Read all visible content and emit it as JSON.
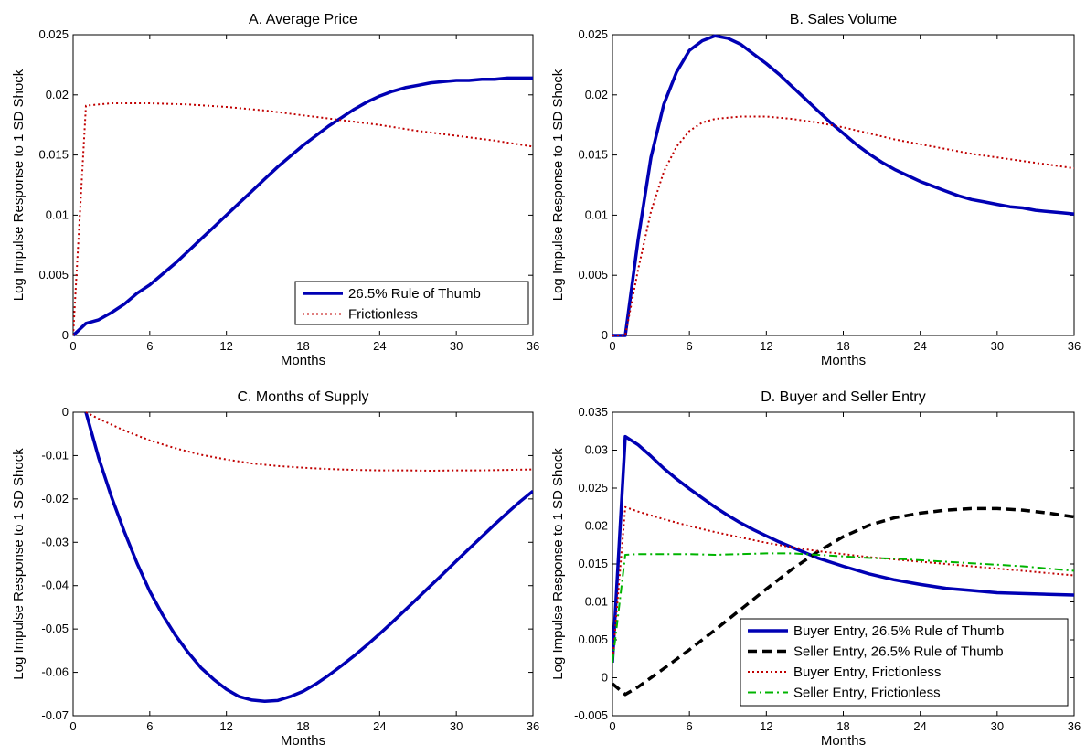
{
  "chart_data": [
    {
      "id": "A",
      "type": "line",
      "title": "A. Average Price",
      "xlabel": "Months",
      "ylabel": "Log Impulse Response to 1 SD Shock",
      "xlim": [
        0,
        36
      ],
      "ylim": [
        0,
        0.025
      ],
      "xticks": [
        0,
        6,
        12,
        18,
        24,
        30,
        36
      ],
      "yticks": [
        0,
        0.005,
        0.01,
        0.015,
        0.02,
        0.025
      ],
      "ytick_labels": [
        "0",
        "0.005",
        "0.01",
        "0.015",
        "0.02",
        "0.025"
      ],
      "legend": "bottom-right",
      "series": [
        {
          "name": "26.5% Rule of Thumb",
          "color": "#0000b4",
          "style": "solid",
          "x": [
            0,
            1,
            2,
            3,
            4,
            5,
            6,
            7,
            8,
            9,
            10,
            11,
            12,
            13,
            14,
            15,
            16,
            17,
            18,
            19,
            20,
            21,
            22,
            23,
            24,
            25,
            26,
            27,
            28,
            29,
            30,
            31,
            32,
            33,
            34,
            35,
            36
          ],
          "y": [
            0,
            0.001,
            0.0013,
            0.0019,
            0.0026,
            0.0035,
            0.0042,
            0.0051,
            0.006,
            0.007,
            0.008,
            0.009,
            0.01,
            0.011,
            0.012,
            0.013,
            0.014,
            0.0149,
            0.0158,
            0.0166,
            0.0174,
            0.0181,
            0.0188,
            0.0194,
            0.0199,
            0.0203,
            0.0206,
            0.0208,
            0.021,
            0.0211,
            0.0212,
            0.0212,
            0.0213,
            0.0213,
            0.0214,
            0.0214,
            0.0214
          ]
        },
        {
          "name": "Frictionless",
          "color": "#c00000",
          "style": "dotted",
          "x": [
            0,
            1,
            3,
            6,
            9,
            12,
            15,
            18,
            21,
            24,
            27,
            30,
            33,
            36
          ],
          "y": [
            0,
            0.0191,
            0.0193,
            0.0193,
            0.0192,
            0.019,
            0.0187,
            0.0183,
            0.0179,
            0.0175,
            0.017,
            0.0166,
            0.0162,
            0.0157
          ]
        }
      ]
    },
    {
      "id": "B",
      "type": "line",
      "title": "B. Sales Volume",
      "xlabel": "Months",
      "ylabel": "Log Impulse Response to 1 SD Shock",
      "xlim": [
        0,
        36
      ],
      "ylim": [
        0,
        0.025
      ],
      "xticks": [
        0,
        6,
        12,
        18,
        24,
        30,
        36
      ],
      "yticks": [
        0,
        0.005,
        0.01,
        0.015,
        0.02,
        0.025
      ],
      "ytick_labels": [
        "0",
        "0.005",
        "0.01",
        "0.015",
        "0.02",
        "0.025"
      ],
      "series": [
        {
          "name": "26.5% Rule of Thumb",
          "color": "#0000b4",
          "style": "solid",
          "x": [
            0,
            1,
            2,
            3,
            4,
            5,
            6,
            7,
            8,
            9,
            10,
            11,
            12,
            13,
            14,
            15,
            16,
            17,
            18,
            19,
            20,
            21,
            22,
            23,
            24,
            25,
            26,
            27,
            28,
            29,
            30,
            31,
            32,
            33,
            34,
            35,
            36
          ],
          "y": [
            0,
            0,
            0.008,
            0.0148,
            0.0192,
            0.0219,
            0.0237,
            0.0245,
            0.0249,
            0.0247,
            0.0242,
            0.0234,
            0.0226,
            0.0217,
            0.0207,
            0.0197,
            0.0187,
            0.0177,
            0.0168,
            0.0159,
            0.0151,
            0.0144,
            0.0138,
            0.0133,
            0.0128,
            0.0124,
            0.012,
            0.0116,
            0.0113,
            0.0111,
            0.0109,
            0.0107,
            0.0106,
            0.0104,
            0.0103,
            0.0102,
            0.0101
          ]
        },
        {
          "name": "Frictionless",
          "color": "#c00000",
          "style": "dotted",
          "x": [
            0,
            1,
            2,
            3,
            4,
            5,
            6,
            7,
            8,
            9,
            10,
            11,
            12,
            14,
            16,
            18,
            20,
            22,
            24,
            26,
            28,
            30,
            32,
            34,
            36
          ],
          "y": [
            0,
            0,
            0.0055,
            0.0103,
            0.0136,
            0.0157,
            0.017,
            0.0177,
            0.018,
            0.0181,
            0.0182,
            0.0182,
            0.0182,
            0.018,
            0.0177,
            0.0173,
            0.0168,
            0.0163,
            0.0159,
            0.0155,
            0.0151,
            0.0148,
            0.0145,
            0.0142,
            0.0139
          ]
        }
      ]
    },
    {
      "id": "C",
      "type": "line",
      "title": "C. Months of Supply",
      "xlabel": "Months",
      "ylabel": "Log Impulse Response to 1 SD Shock",
      "xlim": [
        0,
        36
      ],
      "ylim": [
        -0.07,
        0
      ],
      "xticks": [
        0,
        6,
        12,
        18,
        24,
        30,
        36
      ],
      "yticks": [
        -0.07,
        -0.06,
        -0.05,
        -0.04,
        -0.03,
        -0.02,
        -0.01,
        0
      ],
      "ytick_labels": [
        "-0.07",
        "-0.06",
        "-0.05",
        "-0.04",
        "-0.03",
        "-0.02",
        "-0.01",
        "0"
      ],
      "series": [
        {
          "name": "26.5% Rule of Thumb",
          "color": "#0000b4",
          "style": "solid",
          "x": [
            1,
            2,
            3,
            4,
            5,
            6,
            7,
            8,
            9,
            10,
            11,
            12,
            13,
            14,
            15,
            16,
            17,
            18,
            19,
            20,
            21,
            22,
            23,
            24,
            25,
            26,
            27,
            28,
            29,
            30,
            31,
            32,
            33,
            34,
            35,
            36
          ],
          "y": [
            0,
            -0.0105,
            -0.0195,
            -0.0275,
            -0.0348,
            -0.0413,
            -0.0467,
            -0.0514,
            -0.0554,
            -0.0589,
            -0.0616,
            -0.0639,
            -0.0656,
            -0.0664,
            -0.0667,
            -0.0665,
            -0.0656,
            -0.0644,
            -0.0627,
            -0.0607,
            -0.0585,
            -0.0562,
            -0.0537,
            -0.0511,
            -0.0484,
            -0.0456,
            -0.0428,
            -0.04,
            -0.0372,
            -0.0343,
            -0.0315,
            -0.0287,
            -0.0259,
            -0.0232,
            -0.0206,
            -0.0182
          ]
        },
        {
          "name": "Frictionless",
          "color": "#c00000",
          "style": "dotted",
          "x": [
            1,
            2,
            4,
            6,
            8,
            10,
            12,
            14,
            16,
            18,
            20,
            22,
            24,
            26,
            28,
            30,
            32,
            34,
            36
          ],
          "y": [
            0,
            -0.0015,
            -0.0042,
            -0.0065,
            -0.0083,
            -0.0098,
            -0.0109,
            -0.0118,
            -0.0124,
            -0.0128,
            -0.0131,
            -0.0133,
            -0.0134,
            -0.0134,
            -0.0135,
            -0.0134,
            -0.0134,
            -0.0133,
            -0.0132
          ]
        }
      ]
    },
    {
      "id": "D",
      "type": "line",
      "title": "D. Buyer and Seller Entry",
      "xlabel": "Months",
      "ylabel": "Log Impulse Response to 1 SD Shock",
      "xlim": [
        0,
        36
      ],
      "ylim": [
        -0.005,
        0.035
      ],
      "xticks": [
        0,
        6,
        12,
        18,
        24,
        30,
        36
      ],
      "yticks": [
        -0.005,
        0,
        0.005,
        0.01,
        0.015,
        0.02,
        0.025,
        0.03,
        0.035
      ],
      "ytick_labels": [
        "-0.005",
        "0",
        "0.005",
        "0.01",
        "0.015",
        "0.02",
        "0.025",
        "0.03",
        "0.035"
      ],
      "legend": "bottom-right",
      "series": [
        {
          "name": "Buyer Entry, 26.5% Rule of Thumb",
          "color": "#0000b4",
          "style": "solid",
          "x": [
            0,
            1,
            2,
            3,
            4,
            5,
            6,
            7,
            8,
            9,
            10,
            11,
            12,
            13,
            14,
            15,
            16,
            18,
            20,
            22,
            24,
            26,
            28,
            30,
            32,
            34,
            36
          ],
          "y": [
            0.002,
            0.0318,
            0.0307,
            0.0292,
            0.0276,
            0.0262,
            0.0249,
            0.0237,
            0.0225,
            0.0214,
            0.0204,
            0.0195,
            0.0187,
            0.0179,
            0.0172,
            0.0165,
            0.0158,
            0.0147,
            0.0137,
            0.0129,
            0.0123,
            0.0118,
            0.0115,
            0.0112,
            0.0111,
            0.011,
            0.0109
          ]
        },
        {
          "name": "Seller Entry, 26.5% Rule of Thumb",
          "color": "#000000",
          "style": "dashed",
          "x": [
            0,
            1,
            2,
            4,
            6,
            8,
            10,
            12,
            14,
            16,
            18,
            20,
            22,
            24,
            26,
            28,
            30,
            32,
            34,
            36
          ],
          "y": [
            -0.0008,
            -0.0022,
            -0.0012,
            0.0012,
            0.0037,
            0.0063,
            0.009,
            0.0117,
            0.0143,
            0.0166,
            0.0186,
            0.0201,
            0.0211,
            0.0217,
            0.0221,
            0.0223,
            0.0223,
            0.0221,
            0.0217,
            0.0212
          ]
        },
        {
          "name": "Buyer Entry, Frictionless",
          "color": "#c00000",
          "style": "dotted",
          "x": [
            0,
            1,
            2,
            4,
            6,
            8,
            10,
            12,
            14,
            16,
            18,
            20,
            22,
            24,
            26,
            28,
            30,
            32,
            34,
            36
          ],
          "y": [
            0.002,
            0.0225,
            0.0219,
            0.0209,
            0.02,
            0.0192,
            0.0185,
            0.0178,
            0.0172,
            0.0167,
            0.0163,
            0.0159,
            0.0156,
            0.0153,
            0.015,
            0.0147,
            0.0144,
            0.0141,
            0.0138,
            0.0135
          ]
        },
        {
          "name": "Seller Entry, Frictionless",
          "color": "#00b400",
          "style": "dashdot",
          "x": [
            0,
            1,
            2,
            4,
            6,
            8,
            10,
            12,
            14,
            16,
            18,
            20,
            22,
            24,
            26,
            28,
            30,
            32,
            34,
            36
          ],
          "y": [
            0.002,
            0.0162,
            0.0163,
            0.0163,
            0.0163,
            0.0162,
            0.0163,
            0.0164,
            0.0164,
            0.0162,
            0.016,
            0.0158,
            0.0157,
            0.0155,
            0.0153,
            0.0151,
            0.0149,
            0.0147,
            0.0144,
            0.0141
          ]
        }
      ]
    }
  ]
}
